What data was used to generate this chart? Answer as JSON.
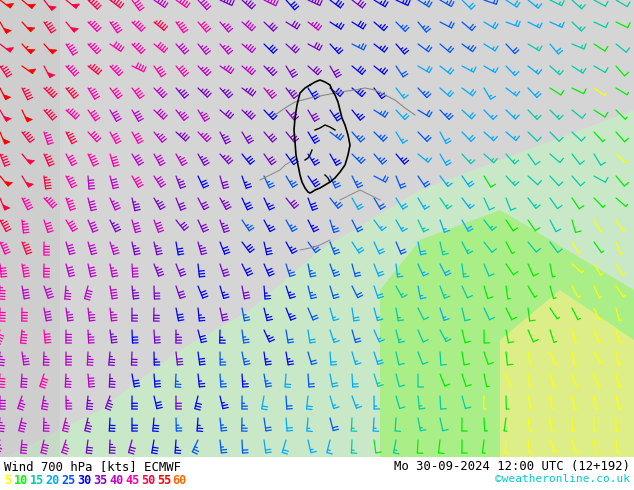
{
  "title_left": "Wind 700 hPa [kts] ECMWF",
  "title_right": "Mo 30-09-2024 12:00 UTC (12+192)",
  "watermark": "©weatheronline.co.uk",
  "legend_values": [
    "5",
    "10",
    "15",
    "20",
    "25",
    "30",
    "35",
    "40",
    "45",
    "50",
    "55",
    "60"
  ],
  "legend_colors": [
    "#ffff00",
    "#00ff00",
    "#00ccaa",
    "#00aaff",
    "#0055ff",
    "#0000ff",
    "#8800cc",
    "#cc00cc",
    "#ff00aa",
    "#ff0044",
    "#ff0000",
    "#ff6600"
  ],
  "bg_color": "#ffffff",
  "figsize": [
    6.34,
    4.9
  ],
  "dpi": 100,
  "map_gray": "#d8d8d8",
  "map_green_light": "#cceecc",
  "map_green_bright": "#aaddaa",
  "map_green_yellow": "#ddeeaa",
  "border_dark": "#000000",
  "border_gray": "#888888"
}
